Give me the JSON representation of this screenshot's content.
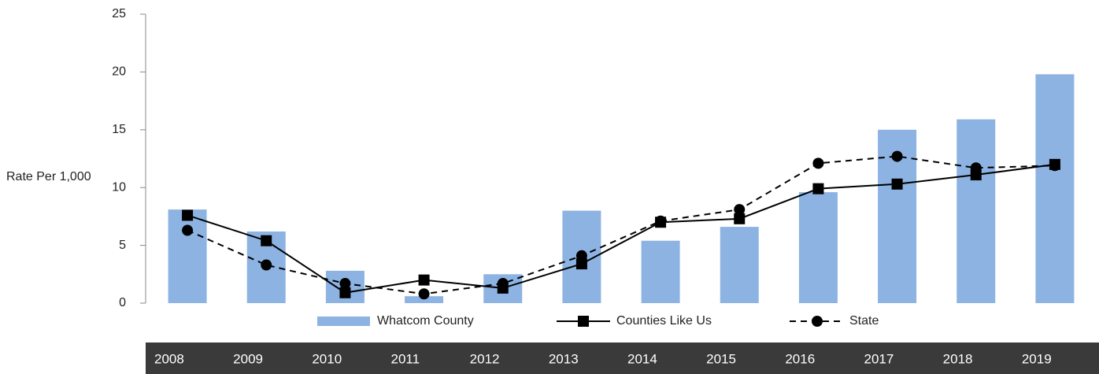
{
  "chart_data": {
    "type": "bar_line",
    "y_label": "Rate Per 1,000",
    "categories": [
      "2008",
      "2009",
      "2010",
      "2011",
      "2012",
      "2013",
      "2014",
      "2015",
      "2016",
      "2017",
      "2018",
      "2019"
    ],
    "series": [
      {
        "name": "Whatcom County",
        "type": "bar",
        "color": "#8db3e2",
        "values": [
          8.1,
          6.2,
          2.8,
          0.6,
          2.5,
          8.0,
          5.4,
          6.6,
          9.6,
          15.0,
          15.9,
          19.8
        ]
      },
      {
        "name": "Counties Like Us",
        "type": "line",
        "marker": "square",
        "dash": false,
        "color": "#000000",
        "values": [
          7.6,
          5.4,
          0.9,
          2.0,
          1.3,
          3.4,
          7.0,
          7.3,
          9.9,
          10.3,
          11.1,
          12.0
        ]
      },
      {
        "name": "State",
        "type": "line",
        "marker": "circle",
        "dash": true,
        "color": "#000000",
        "values": [
          6.3,
          3.3,
          1.7,
          0.8,
          1.7,
          4.1,
          7.1,
          8.1,
          12.1,
          12.7,
          11.7,
          11.9
        ]
      }
    ],
    "ylim": [
      0,
      25
    ],
    "yticks": [
      0,
      5,
      10,
      15,
      20,
      25
    ],
    "grid": false
  }
}
